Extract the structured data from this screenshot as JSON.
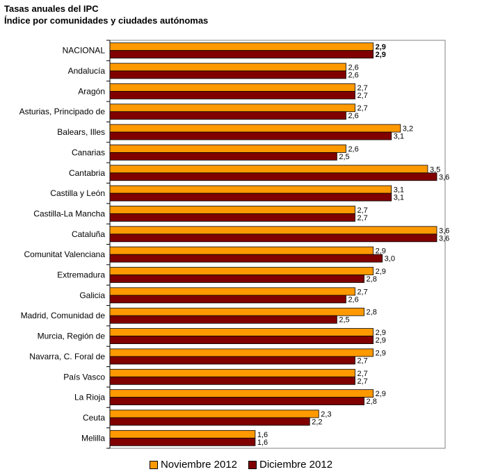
{
  "header": {
    "title": "Tasas anuales del IPC",
    "subtitle": "Índice por comunidades y ciudades autónomas"
  },
  "chart_data": {
    "type": "bar",
    "orientation": "horizontal",
    "title": "Tasas anuales del IPC",
    "subtitle": "Índice por comunidades y ciudades autónomas",
    "categories": [
      "NACIONAL",
      "Andalucía",
      "Aragón",
      "Asturias, Principado de",
      "Balears, Illes",
      "Canarias",
      "Cantabria",
      "Castilla y León",
      "Castilla-La Mancha",
      "Cataluña",
      "Comunitat Valenciana",
      "Extremadura",
      "Galicia",
      "Madrid, Comunidad de",
      "Murcia, Región de",
      "Navarra, C. Foral de",
      "País Vasco",
      "La Rioja",
      "Ceuta",
      "Melilla"
    ],
    "series": [
      {
        "name": "Noviembre 2012",
        "color": "#ff9900",
        "values": [
          2.9,
          2.6,
          2.7,
          2.7,
          3.2,
          2.6,
          3.5,
          3.1,
          2.7,
          3.6,
          2.9,
          2.9,
          2.7,
          2.8,
          2.9,
          2.9,
          2.7,
          2.9,
          2.3,
          1.6
        ],
        "labels": [
          "2,9",
          "2,6",
          "2,7",
          "2,7",
          "3,2",
          "2,6",
          "3,5",
          "3,1",
          "2,7",
          "3,6",
          "2,9",
          "2,9",
          "2,7",
          "2,8",
          "2,9",
          "2,9",
          "2,7",
          "2,9",
          "2,3",
          "1,6"
        ]
      },
      {
        "name": "Diciembre 2012",
        "color": "#800000",
        "values": [
          2.9,
          2.6,
          2.7,
          2.6,
          3.1,
          2.5,
          3.6,
          3.1,
          2.7,
          3.6,
          3.0,
          2.8,
          2.6,
          2.5,
          2.9,
          2.7,
          2.7,
          2.8,
          2.2,
          1.6
        ],
        "labels": [
          "2,9",
          "2,6",
          "2,7",
          "2,6",
          "3,1",
          "2,5",
          "3,6",
          "3,1",
          "2,7",
          "3,6",
          "3,0",
          "2,8",
          "2,6",
          "2,5",
          "2,9",
          "2,7",
          "2,7",
          "2,8",
          "2,2",
          "1,6"
        ]
      }
    ],
    "bold_category": "NACIONAL",
    "xlim": [
      0,
      3.6
    ],
    "grid": false,
    "legend_position": "bottom"
  }
}
